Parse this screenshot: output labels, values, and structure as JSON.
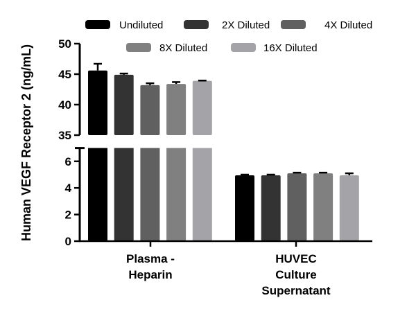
{
  "chart_data": {
    "type": "bar",
    "categories": [
      [
        "Plasma -",
        "Heparin"
      ],
      [
        "HUVEC",
        "Culture",
        "Supernatant"
      ]
    ],
    "ylabel": "Human VEGF Receptor 2 (ng/mL)",
    "y_axis_broken": true,
    "ylim_lower": [
      0,
      7
    ],
    "ylim_upper": [
      35,
      50
    ],
    "yticks_lower": [
      "0",
      "2",
      "4",
      "6"
    ],
    "yticks_upper": [
      "35",
      "40",
      "45",
      "50"
    ],
    "legend_position": "top",
    "series": [
      {
        "name": "Undiluted",
        "color": "#000000",
        "values": [
          45.6,
          4.95
        ],
        "errors": [
          1.1,
          0.05
        ]
      },
      {
        "name": "2X Diluted",
        "color": "#333333",
        "values": [
          44.9,
          4.95
        ],
        "errors": [
          0.2,
          0.05
        ]
      },
      {
        "name": "4X Diluted",
        "color": "#606060",
        "values": [
          43.2,
          5.1
        ],
        "errors": [
          0.3,
          0.05
        ]
      },
      {
        "name": "8X Diluted",
        "color": "#808080",
        "values": [
          43.4,
          5.1
        ],
        "errors": [
          0.3,
          0.05
        ]
      },
      {
        "name": "16X Diluted",
        "color": "#a4a4a8",
        "values": [
          43.9,
          4.95
        ],
        "errors": [
          0.05,
          0.15
        ]
      }
    ]
  }
}
